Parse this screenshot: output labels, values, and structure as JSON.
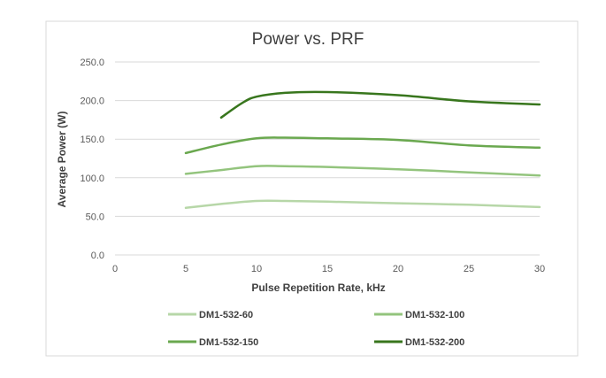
{
  "chart_data": {
    "type": "line",
    "title": "Power vs. PRF",
    "xlabel": "Pulse Repetition Rate, kHz",
    "ylabel": "Average Power (W)",
    "xlim": [
      0,
      30
    ],
    "ylim": [
      0,
      250
    ],
    "x_ticks": [
      "0",
      "5",
      "10",
      "15",
      "20",
      "25",
      "30"
    ],
    "y_ticks": [
      "0.0",
      "50.0",
      "100.0",
      "150.0",
      "200.0",
      "250.0"
    ],
    "grid": "horizontal",
    "legend_position": "bottom",
    "series": [
      {
        "name": "DM1-532-60",
        "color": "#b7d7a8",
        "x": [
          5,
          7.5,
          10,
          12,
          15,
          20,
          25,
          30
        ],
        "y": [
          61,
          66,
          70,
          70,
          69,
          67,
          65,
          62
        ]
      },
      {
        "name": "DM1-532-100",
        "color": "#93c47d",
        "x": [
          5,
          7.5,
          10,
          12,
          15,
          20,
          25,
          30
        ],
        "y": [
          105,
          110,
          115,
          115,
          114,
          111,
          107,
          103
        ]
      },
      {
        "name": "DM1-532-150",
        "color": "#6aa84f",
        "x": [
          5,
          7.5,
          10,
          12,
          15,
          20,
          25,
          30
        ],
        "y": [
          132,
          143,
          151,
          152,
          151,
          149,
          142,
          139
        ]
      },
      {
        "name": "DM1-532-200",
        "color": "#38761d",
        "x": [
          7.5,
          9,
          10,
          12,
          15,
          20,
          25,
          30
        ],
        "y": [
          178,
          197,
          205,
          210,
          211,
          207,
          199,
          195
        ]
      }
    ]
  }
}
